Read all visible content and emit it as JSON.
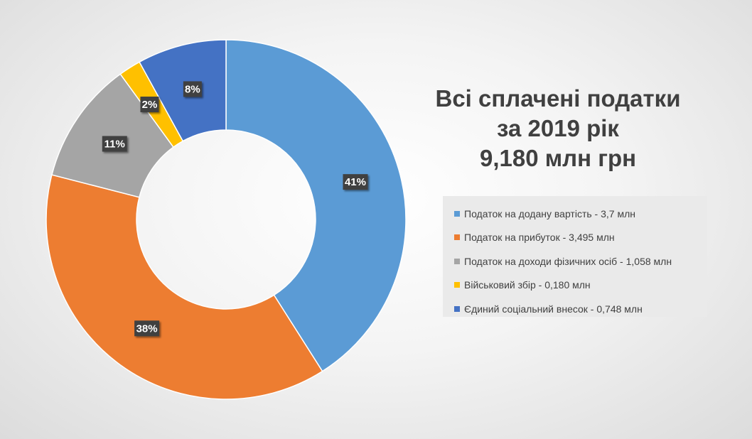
{
  "title_lines": [
    "Всі сплачені податки",
    "за 2019 рік",
    "9,180 млн грн"
  ],
  "chart_data": {
    "type": "pie",
    "donut": true,
    "legend_position": "right",
    "categories": [
      "Податок на додану вартість - 3,7 млн",
      "Податок на прибуток - 3,495 млн",
      "Податок на доходи фізичних осіб - 1,058 млн",
      "Військовий збір - 0,180 млн",
      "Єдиний соціальний внесок - 0,748 млн"
    ],
    "values": [
      41,
      38,
      11,
      2,
      8
    ],
    "labels": [
      "41%",
      "38%",
      "11%",
      "2%",
      "8%"
    ],
    "colors": [
      "#5b9bd5",
      "#ed7d31",
      "#a5a5a5",
      "#ffc000",
      "#4472c4"
    ]
  }
}
